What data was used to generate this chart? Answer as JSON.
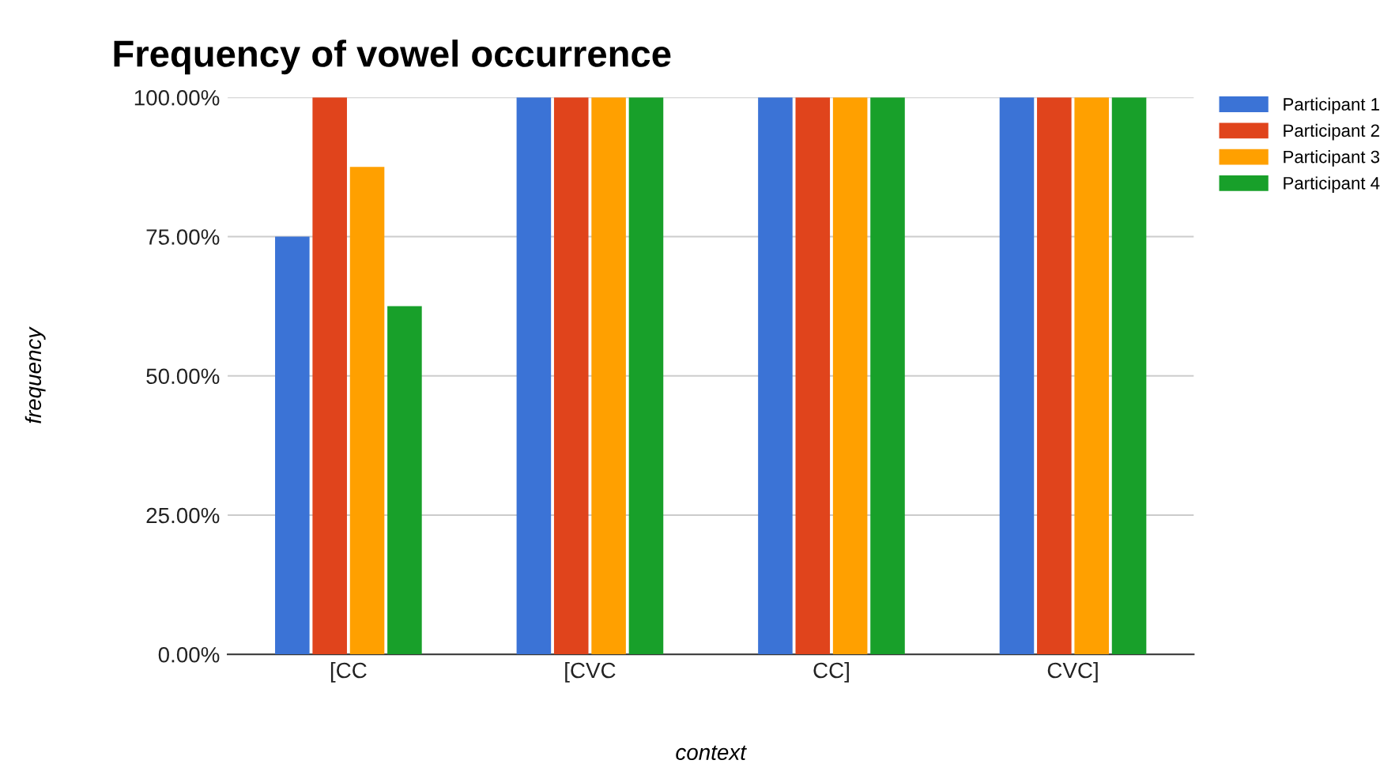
{
  "chart_data": {
    "type": "bar",
    "title": "Frequency of vowel occurrence",
    "xlabel": "context",
    "ylabel": "frequency",
    "categories": [
      "[CC",
      "[CVC",
      "CC]",
      "CVC]"
    ],
    "series": [
      {
        "name": "Participant 1",
        "color": "#3b73d6",
        "values": [
          75,
          100,
          100,
          100
        ]
      },
      {
        "name": "Participant 2",
        "color": "#e0441c",
        "values": [
          100,
          100,
          100,
          100
        ]
      },
      {
        "name": "Participant 3",
        "color": "#ffa000",
        "values": [
          87.5,
          100,
          100,
          100
        ]
      },
      {
        "name": "Participant 4",
        "color": "#18a02a",
        "values": [
          62.5,
          100,
          100,
          100
        ]
      }
    ],
    "ylim": [
      0,
      100
    ],
    "yticks": [
      {
        "value": 0,
        "label": "0.00%"
      },
      {
        "value": 25,
        "label": "25.00%"
      },
      {
        "value": 50,
        "label": "50.00%"
      },
      {
        "value": 75,
        "label": "75.00%"
      },
      {
        "value": 100,
        "label": "100.00%"
      }
    ],
    "grid": "y",
    "legend": "top right"
  }
}
